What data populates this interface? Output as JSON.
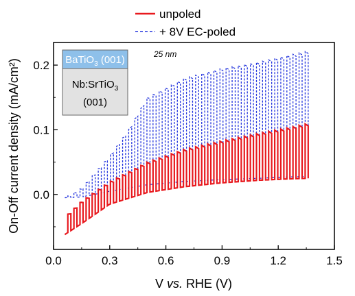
{
  "chart_data": {
    "type": "line",
    "title": "",
    "xlabel_prefix": "V ",
    "xlabel_italic": "vs.",
    "xlabel_suffix": " RHE (V)",
    "ylabel": "On-Off current density (mA/cm²)",
    "xlim": [
      0.0,
      1.5
    ],
    "ylim": [
      -0.085,
      0.235
    ],
    "xticks": [
      0.0,
      0.3,
      0.6,
      0.9,
      1.2,
      1.5
    ],
    "xtick_labels": [
      "0.0",
      "0.3",
      "0.6",
      "0.9",
      "1.2",
      "1.5"
    ],
    "yticks": [
      0.0,
      0.1,
      0.2
    ],
    "ytick_labels": [
      "0.0",
      "0.1",
      "0.2"
    ],
    "grid": false,
    "legend_position": "top-center",
    "annotation": "25 nm",
    "inset": {
      "top_layer": {
        "base": "BaTiO",
        "sub": "3",
        "rest": " (001)",
        "color": "#8ec0ea"
      },
      "bottom_layer": {
        "base": "Nb:SrTiO",
        "sub": "3",
        "line2": "(001)",
        "color": "#e2e2e2"
      }
    },
    "x_start": 0.06,
    "x_end": 1.36,
    "pulse_period": 0.0325,
    "series": [
      {
        "name": "unpoled",
        "color": "#e8191e",
        "style": "solid",
        "on_envelope": {
          "x": [
            0.06,
            0.15,
            0.3,
            0.5,
            0.7,
            0.9,
            1.1,
            1.25,
            1.36
          ],
          "y": [
            -0.035,
            -0.01,
            0.02,
            0.05,
            0.07,
            0.083,
            0.095,
            0.103,
            0.11
          ]
        },
        "off_envelope": {
          "x": [
            0.06,
            0.15,
            0.3,
            0.5,
            0.7,
            0.9,
            1.1,
            1.25,
            1.36
          ],
          "y": [
            -0.062,
            -0.045,
            -0.015,
            0.003,
            0.012,
            0.018,
            0.022,
            0.024,
            0.025
          ]
        }
      },
      {
        "name": "+ 8V EC-poled",
        "color": "#2233dd",
        "style": "dashed",
        "on_envelope": {
          "x": [
            0.06,
            0.15,
            0.3,
            0.4,
            0.5,
            0.7,
            0.9,
            1.1,
            1.25,
            1.36
          ],
          "y": [
            -0.005,
            0.01,
            0.06,
            0.1,
            0.15,
            0.18,
            0.195,
            0.205,
            0.215,
            0.222
          ]
        },
        "off_envelope": {
          "x": [
            0.06,
            0.15,
            0.3,
            0.5,
            0.7,
            0.9,
            1.1,
            1.25,
            1.36
          ],
          "y": [
            -0.005,
            -0.004,
            0.005,
            0.015,
            0.02,
            0.023,
            0.025,
            0.027,
            0.028
          ]
        }
      }
    ]
  }
}
